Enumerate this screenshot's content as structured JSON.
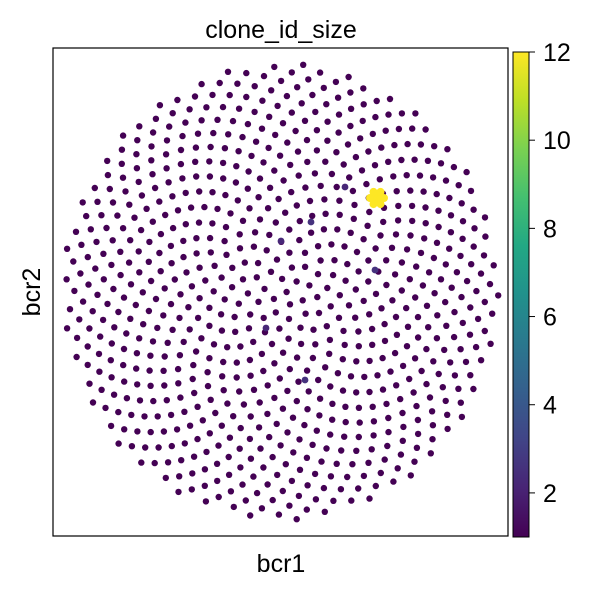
{
  "chart_data": {
    "type": "scatter",
    "title": "clone_id_size",
    "xlabel": "bcr1",
    "ylabel": "bcr2",
    "layout": "circular packing of points (embedding, no axis ticks)",
    "grid": false,
    "point_color_default": "#440154",
    "colorbar": {
      "label": "",
      "min": 1,
      "max": 12,
      "ticks": [
        2,
        4,
        6,
        8,
        10,
        12
      ],
      "colormap": "viridis"
    },
    "highlighted_clusters": [
      {
        "clone_id_size": 12,
        "color": "#fde725"
      },
      {
        "clone_id_size": 3,
        "color": "#46327e"
      },
      {
        "clone_id_size": 2,
        "color": "#482878"
      }
    ]
  }
}
